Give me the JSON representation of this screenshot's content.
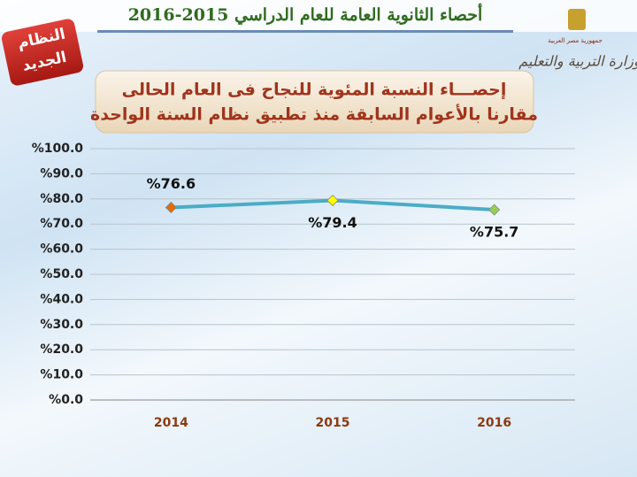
{
  "header": {
    "title": "أحصاء الثانوية العامة للعام الدراسي 2015-2016",
    "badge": [
      "النظام",
      "الجديد"
    ],
    "logo": [
      "جمهورية مصر العربية",
      "وزارة التربية والتعليم"
    ]
  },
  "chart_data": {
    "type": "line",
    "title": [
      "إحصـــاء النسبة المئوية للنجاح فى العام الحالى",
      "مقارنا بالأعوام السابقة منذ تطبيق نظام السنة الواحدة"
    ],
    "categories": [
      "2014",
      "2015",
      "2016"
    ],
    "values": [
      76.6,
      79.4,
      75.7
    ],
    "value_labels": [
      "%76.6",
      "%79.4",
      "%75.7"
    ],
    "color": "#4bacc6",
    "marker_colors": [
      "#e36c09",
      "#ffff00",
      "#92d050"
    ],
    "ylim": [
      0,
      100
    ],
    "yticks": [
      {
        "value": 0,
        "label": "%0.0"
      },
      {
        "value": 10,
        "label": "%10.0"
      },
      {
        "value": 20,
        "label": "%20.0"
      },
      {
        "value": 30,
        "label": "%30.0"
      },
      {
        "value": 40,
        "label": "%40.0"
      },
      {
        "value": 50,
        "label": "%50.0"
      },
      {
        "value": 60,
        "label": "%60.0"
      },
      {
        "value": 70,
        "label": "%70.0"
      },
      {
        "value": 80,
        "label": "%80.0"
      },
      {
        "value": 90,
        "label": "%90.0"
      },
      {
        "value": 100,
        "label": "%100.0"
      }
    ],
    "grid": true
  }
}
